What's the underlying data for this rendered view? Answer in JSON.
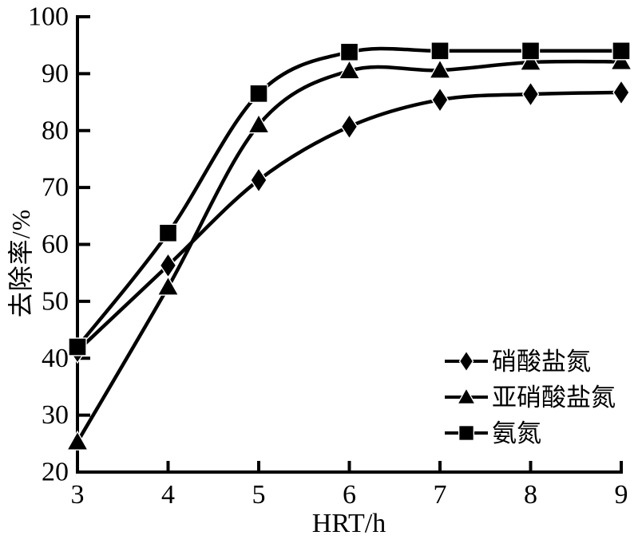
{
  "figure": {
    "background": "#ffffff",
    "foreground": "#000000"
  },
  "chart_data": {
    "type": "line",
    "title": "",
    "xlabel": "HRT/h",
    "ylabel": "去除率/%",
    "xlim": [
      3,
      9
    ],
    "ylim": [
      20,
      100
    ],
    "x_ticks": [
      3,
      4,
      5,
      6,
      7,
      8,
      9
    ],
    "y_ticks": [
      20,
      30,
      40,
      50,
      60,
      70,
      80,
      90,
      100
    ],
    "grid": false,
    "legend_position": "inside-lower-right",
    "x": [
      3,
      4,
      5,
      6,
      7,
      8,
      9
    ],
    "series": [
      {
        "name": "硝酸盐氮",
        "marker": "diamond",
        "color": "#000000",
        "values": [
          41.3,
          56.3,
          71.3,
          80.7,
          85.4,
          86.4,
          86.7
        ]
      },
      {
        "name": "亚硝酸盐氮",
        "marker": "triangle",
        "color": "#000000",
        "values": [
          25.3,
          52.5,
          81.0,
          90.5,
          90.6,
          92.0,
          92.1
        ]
      },
      {
        "name": "氨氮",
        "marker": "square",
        "color": "#000000",
        "values": [
          42.0,
          62.0,
          86.5,
          93.8,
          94.0,
          94.0,
          94.0
        ]
      }
    ]
  }
}
